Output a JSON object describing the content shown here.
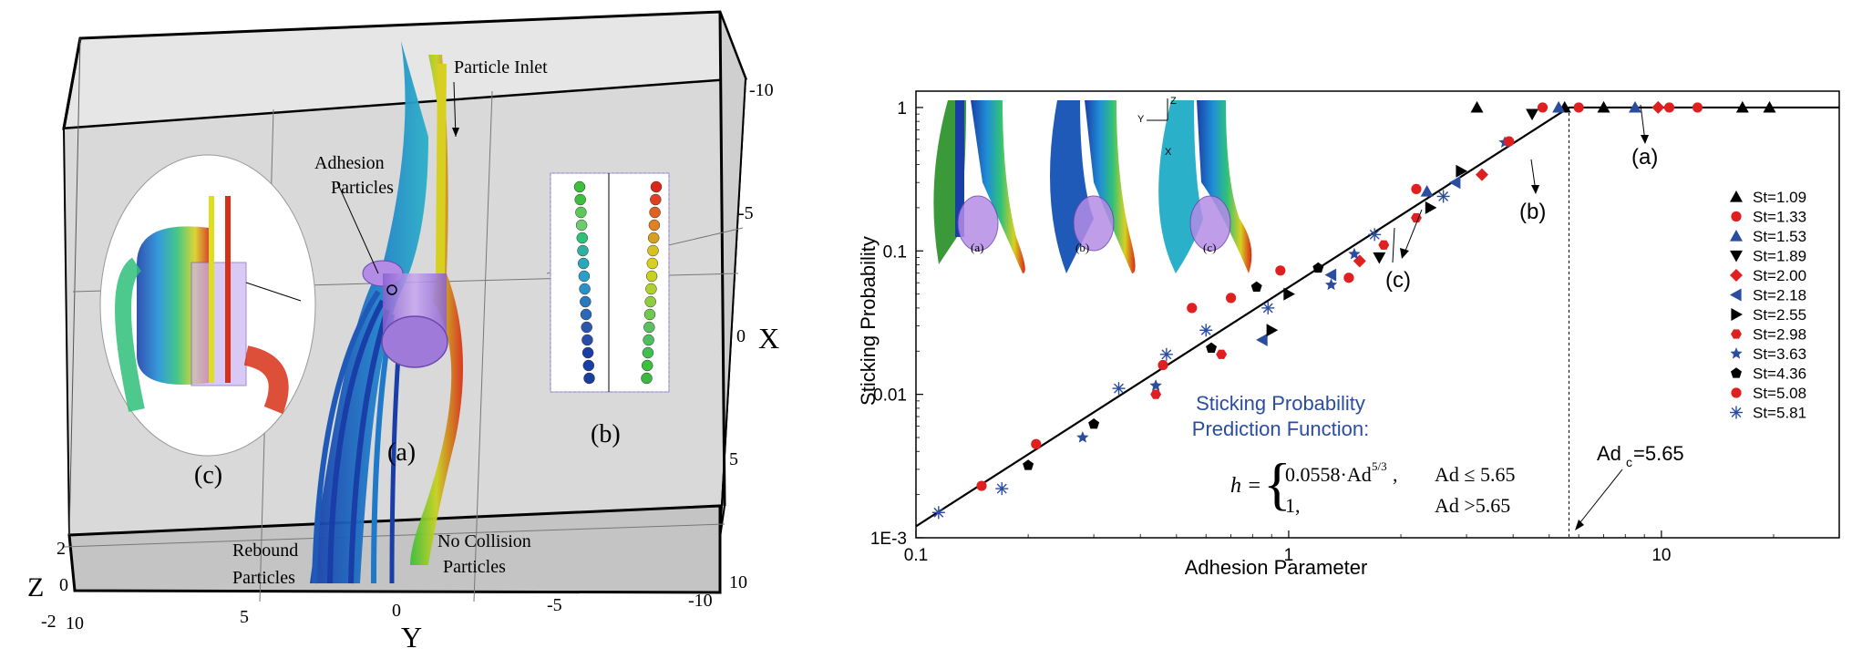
{
  "left_panel": {
    "labels": {
      "particle_inlet": "Particle Inlet",
      "adhesion_line1": "Adhesion",
      "adhesion_line2": "Particles",
      "rebound_line1": "Rebound",
      "rebound_line2": "Particles",
      "nocollision_line1": "No Collision",
      "nocollision_line2": "Particles",
      "panel_a": "(a)",
      "panel_b": "(b)",
      "panel_c": "(c)"
    },
    "axes": {
      "x_label": "X",
      "y_label": "Y",
      "z_label": "Z",
      "x_ticks": [
        "-10",
        "-5",
        "0",
        "5",
        "10"
      ],
      "y_ticks": [
        "10",
        "5",
        "0",
        "-5",
        "-10"
      ],
      "z_ticks": [
        "2",
        "0",
        "-2"
      ]
    },
    "colors": {
      "box_fill": "#dcdcdc",
      "floor_fill": "#c8c8c8",
      "cylinder": "#b48ce6"
    }
  },
  "chart_data": {
    "type": "scatter",
    "xlabel": "Adhesion Parameter",
    "ylabel": "Sticking Probability",
    "x_scale": "log",
    "y_scale": "log",
    "xlim": [
      0.1,
      30
    ],
    "ylim": [
      0.001,
      1.3
    ],
    "x_ticks": [
      {
        "value": 0.1,
        "label": "0.1"
      },
      {
        "value": 1,
        "label": "1"
      },
      {
        "value": 10,
        "label": "10"
      }
    ],
    "y_ticks": [
      {
        "value": 0.001,
        "label": "1E-3"
      },
      {
        "value": 0.01,
        "label": "0.01"
      },
      {
        "value": 0.1,
        "label": "0.1"
      },
      {
        "value": 1,
        "label": "1"
      }
    ],
    "legend_position": "right",
    "series": [
      {
        "name": "St=1.09",
        "marker": "triangle-up",
        "color": "#000000",
        "points": [
          [
            3.2,
            1.0
          ],
          [
            5.5,
            1.0
          ],
          [
            7.0,
            1.0
          ],
          [
            16.5,
            1.0
          ],
          [
            19.5,
            1.0
          ]
        ]
      },
      {
        "name": "St=1.33",
        "marker": "circle",
        "color": "#e02020",
        "points": [
          [
            0.15,
            0.0023
          ],
          [
            0.46,
            0.016
          ],
          [
            0.7,
            0.047
          ],
          [
            0.95,
            0.073
          ],
          [
            1.45,
            0.065
          ],
          [
            2.2,
            0.27
          ],
          [
            6.0,
            1.0
          ],
          [
            12.5,
            1.0
          ]
        ]
      },
      {
        "name": "St=1.53",
        "marker": "triangle-up",
        "color": "#2a4da0",
        "points": [
          [
            2.35,
            0.26
          ],
          [
            5.3,
            1.0
          ],
          [
            8.5,
            1.0
          ]
        ]
      },
      {
        "name": "St=1.89",
        "marker": "triangle-down",
        "color": "#000000",
        "points": [
          [
            1.75,
            0.09
          ],
          [
            4.5,
            0.9
          ]
        ]
      },
      {
        "name": "St=2.00",
        "marker": "diamond",
        "color": "#e02020",
        "points": [
          [
            1.55,
            0.085
          ],
          [
            3.3,
            0.34
          ],
          [
            9.8,
            1.0
          ]
        ]
      },
      {
        "name": "St=2.18",
        "marker": "triangle-left",
        "color": "#2a4da0",
        "points": [
          [
            0.85,
            0.024
          ],
          [
            1.3,
            0.068
          ],
          [
            2.8,
            0.3
          ]
        ]
      },
      {
        "name": "St=2.55",
        "marker": "triangle-right",
        "color": "#000000",
        "points": [
          [
            0.9,
            0.028
          ],
          [
            1.0,
            0.05
          ],
          [
            2.4,
            0.2
          ],
          [
            2.9,
            0.36
          ]
        ]
      },
      {
        "name": "St=2.98",
        "marker": "hexagon",
        "color": "#e02020",
        "points": [
          [
            0.44,
            0.01
          ],
          [
            0.66,
            0.019
          ],
          [
            1.8,
            0.11
          ],
          [
            2.2,
            0.17
          ]
        ]
      },
      {
        "name": "St=3.63",
        "marker": "star",
        "color": "#2a4da0",
        "points": [
          [
            0.28,
            0.005
          ],
          [
            0.44,
            0.0115
          ],
          [
            1.3,
            0.058
          ],
          [
            1.5,
            0.095
          ],
          [
            3.8,
            0.57
          ]
        ]
      },
      {
        "name": "St=4.36",
        "marker": "pentagon",
        "color": "#000000",
        "points": [
          [
            0.2,
            0.0032
          ],
          [
            0.3,
            0.0062
          ],
          [
            0.62,
            0.021
          ],
          [
            0.82,
            0.056
          ],
          [
            1.2,
            0.076
          ]
        ]
      },
      {
        "name": "St=5.08",
        "marker": "circle",
        "color": "#e02020",
        "points": [
          [
            0.21,
            0.0045
          ],
          [
            0.55,
            0.04
          ],
          [
            3.9,
            0.58
          ],
          [
            4.8,
            1.0
          ],
          [
            10.5,
            1.0
          ]
        ]
      },
      {
        "name": "St=5.81",
        "marker": "asterisk",
        "color": "#2a4da0",
        "points": [
          [
            0.115,
            0.0015
          ],
          [
            0.17,
            0.0022
          ],
          [
            0.35,
            0.011
          ],
          [
            0.47,
            0.019
          ],
          [
            0.6,
            0.028
          ],
          [
            0.88,
            0.04
          ],
          [
            1.7,
            0.13
          ],
          [
            2.6,
            0.24
          ]
        ]
      }
    ],
    "fit_line": {
      "coef": 0.0558,
      "exponent_num": 5,
      "exponent_den": 3,
      "threshold": 5.65
    },
    "annotations": {
      "box_title_line1": "Sticking Probability",
      "box_title_line2": "Prediction Function:",
      "formula_lhs": "h =",
      "formula_row1_expr": "0.0558·Ad",
      "formula_row1_exp": "5/3",
      "formula_row1_sep": ",",
      "formula_row1_cond": "Ad ≤ 5.65",
      "formula_row2_expr": "1,",
      "formula_row2_cond": "Ad >5.65",
      "adc_main": "Ad",
      "adc_sub": "c",
      "adc_value": "=5.65",
      "arrow_a": "(a)",
      "arrow_b": "(b)",
      "arrow_c": "(c)",
      "inset_a": "(a)",
      "inset_b": "(b)",
      "inset_c": "(c)",
      "inset_axis_z": "Z",
      "inset_axis_y": "Y",
      "inset_axis_x": "X"
    },
    "colors": {
      "fit_line": "#000000",
      "box_title": "#2a4da0"
    }
  }
}
